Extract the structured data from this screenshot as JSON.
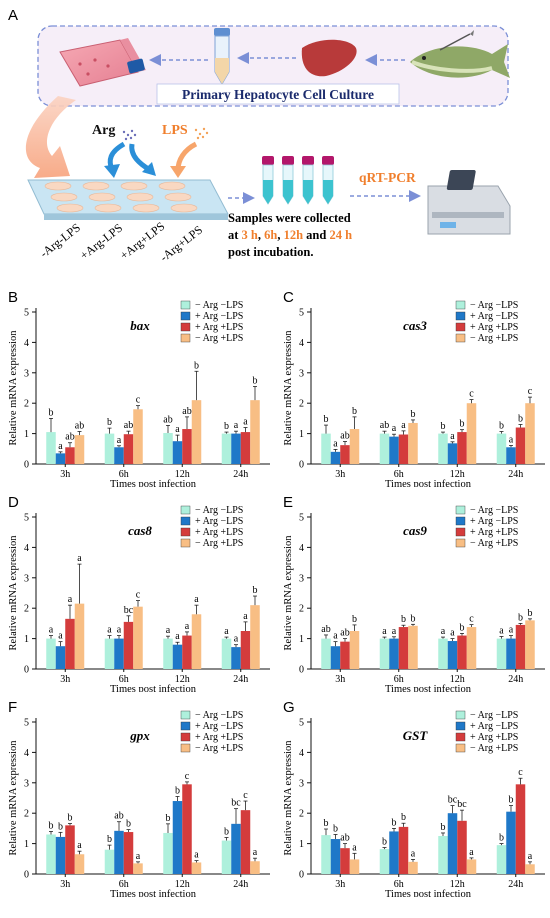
{
  "schematic": {
    "panel_letter": "A",
    "culture_title": "Primary Hepatocyte Cell Culture",
    "arg_label": "Arg",
    "lps_label": "LPS",
    "plate_labels": [
      "-Arg-LPS",
      "+Arg-LPS",
      "+Arg+LPS",
      "-Arg+LPS"
    ],
    "qrt_label": "qRT-PCR",
    "samples_line1": "Samples were collected",
    "samples_line2_parts": [
      "at ",
      "3 h",
      ", ",
      "6h",
      ", ",
      "12h",
      " and ",
      "24 h"
    ],
    "samples_line3": "post incubation.",
    "colors": {
      "orange": "#f07f2d",
      "navy": "#1a2a6c",
      "blue_arrow": "#2b8fd8",
      "dash_box": "#7b8fd6"
    }
  },
  "legend": [
    "− Arg −LPS",
    "+ Arg −LPS",
    "+ Arg +LPS",
    "− Arg +LPS"
  ],
  "series_colors": [
    "#aef0dc",
    "#1f78c8",
    "#d43c3c",
    "#f8be84"
  ],
  "chart_data": [
    {
      "type": "bar",
      "panel": "B",
      "title": "bax",
      "categories": [
        "3h",
        "6h",
        "12h",
        "24h"
      ],
      "xlabel": "Times post infection",
      "ylabel": "Relative  mRNA expression",
      "ylim": [
        0,
        5
      ],
      "yticks": [
        0,
        1,
        2,
        3,
        4,
        5
      ],
      "series": [
        {
          "name": "− Arg −LPS",
          "values": [
            1.05,
            1.0,
            1.02,
            1.0
          ],
          "errors": [
            0.45,
            0.18,
            0.25,
            0.05
          ],
          "labels": [
            "b",
            "b",
            "ab",
            "b"
          ]
        },
        {
          "name": "+ Arg −LPS",
          "values": [
            0.35,
            0.55,
            0.75,
            1.0
          ],
          "errors": [
            0.05,
            0.05,
            0.2,
            0.08
          ],
          "labels": [
            "a",
            "a",
            "a",
            "a"
          ]
        },
        {
          "name": "+ Arg +LPS",
          "values": [
            0.55,
            0.98,
            1.15,
            1.05
          ],
          "errors": [
            0.15,
            0.1,
            0.4,
            0.15
          ],
          "labels": [
            "ab",
            "ab",
            "ab",
            "a"
          ]
        },
        {
          "name": "− Arg +LPS",
          "values": [
            0.95,
            1.8,
            2.1,
            2.1
          ],
          "errors": [
            0.12,
            0.12,
            0.95,
            0.45
          ],
          "labels": [
            "ab",
            "c",
            "b",
            "b"
          ]
        }
      ]
    },
    {
      "type": "bar",
      "panel": "C",
      "title": "cas3",
      "categories": [
        "3h",
        "6h",
        "12h",
        "24h"
      ],
      "xlabel": "Times post infection",
      "ylabel": "Relative  mRNA expression",
      "ylim": [
        0,
        5
      ],
      "yticks": [
        0,
        1,
        2,
        3,
        4,
        5
      ],
      "series": [
        {
          "name": "− Arg −LPS",
          "values": [
            1.0,
            1.0,
            1.0,
            1.0
          ],
          "errors": [
            0.28,
            0.08,
            0.05,
            0.07
          ],
          "labels": [
            "b",
            "ab",
            "b",
            "b"
          ]
        },
        {
          "name": "+ Arg −LPS",
          "values": [
            0.4,
            0.9,
            0.68,
            0.55
          ],
          "errors": [
            0.08,
            0.08,
            0.05,
            0.06
          ],
          "labels": [
            "a",
            "a",
            "a",
            "a"
          ]
        },
        {
          "name": "+ Arg +LPS",
          "values": [
            0.62,
            0.97,
            1.05,
            1.2
          ],
          "errors": [
            0.12,
            0.12,
            0.08,
            0.1
          ],
          "labels": [
            "ab",
            "a",
            "b",
            "b"
          ]
        },
        {
          "name": "− Arg +LPS",
          "values": [
            1.15,
            1.35,
            2.0,
            2.0
          ],
          "errors": [
            0.4,
            0.1,
            0.12,
            0.2
          ],
          "labels": [
            "b",
            "b",
            "c",
            "c"
          ]
        }
      ]
    },
    {
      "type": "bar",
      "panel": "D",
      "title": "cas8",
      "categories": [
        "3h",
        "6h",
        "12h",
        "24h"
      ],
      "xlabel": "Times post infection",
      "ylabel": "Relative  mRNA expression",
      "ylim": [
        0,
        5
      ],
      "yticks": [
        0,
        1,
        2,
        3,
        4,
        5
      ],
      "series": [
        {
          "name": "− Arg −LPS",
          "values": [
            1.0,
            1.0,
            1.0,
            1.0
          ],
          "errors": [
            0.1,
            0.1,
            0.08,
            0.05
          ],
          "labels": [
            "a",
            "a",
            "a",
            "a"
          ]
        },
        {
          "name": "+ Arg −LPS",
          "values": [
            0.75,
            1.0,
            0.8,
            0.72
          ],
          "errors": [
            0.15,
            0.1,
            0.08,
            0.08
          ],
          "labels": [
            "a",
            "a",
            "a",
            "a"
          ]
        },
        {
          "name": "+ Arg +LPS",
          "values": [
            1.65,
            1.55,
            1.1,
            1.25
          ],
          "errors": [
            0.45,
            0.2,
            0.12,
            0.3
          ],
          "labels": [
            "a",
            "bc",
            "a",
            "a"
          ]
        },
        {
          "name": "− Arg +LPS",
          "values": [
            2.15,
            2.05,
            1.8,
            2.1
          ],
          "errors": [
            1.3,
            0.2,
            0.3,
            0.3
          ],
          "labels": [
            "a",
            "c",
            "a",
            "b"
          ]
        }
      ]
    },
    {
      "type": "bar",
      "panel": "E",
      "title": "cas9",
      "categories": [
        "3h",
        "6h",
        "12h",
        "24h"
      ],
      "xlabel": "Times post infection",
      "ylabel": "Relative  mRNA expression",
      "ylim": [
        0,
        5
      ],
      "yticks": [
        0,
        1,
        2,
        3,
        4,
        5
      ],
      "series": [
        {
          "name": "− Arg −LPS",
          "values": [
            1.0,
            1.0,
            1.0,
            1.0
          ],
          "errors": [
            0.12,
            0.05,
            0.05,
            0.07
          ],
          "labels": [
            "ab",
            "a",
            "a",
            "a"
          ]
        },
        {
          "name": "+ Arg −LPS",
          "values": [
            0.75,
            1.0,
            0.92,
            1.0
          ],
          "errors": [
            0.15,
            0.06,
            0.08,
            0.1
          ],
          "labels": [
            "a",
            "a",
            "a",
            "a"
          ]
        },
        {
          "name": "+ Arg +LPS",
          "values": [
            0.9,
            1.38,
            1.1,
            1.45
          ],
          "errors": [
            0.1,
            0.06,
            0.07,
            0.05
          ],
          "labels": [
            "ab",
            "b",
            "b",
            "b"
          ]
        },
        {
          "name": "− Arg +LPS",
          "values": [
            1.25,
            1.42,
            1.38,
            1.6
          ],
          "errors": [
            0.2,
            0.05,
            0.08,
            0.05
          ],
          "labels": [
            "b",
            "b",
            "c",
            "b"
          ]
        }
      ]
    },
    {
      "type": "bar",
      "panel": "F",
      "title": "gpx",
      "categories": [
        "3h",
        "6h",
        "12h",
        "24h"
      ],
      "xlabel": "Times post infection",
      "ylabel": "Relative  mRNA expression",
      "ylim": [
        0,
        5
      ],
      "yticks": [
        0,
        1,
        2,
        3,
        4,
        5
      ],
      "series": [
        {
          "name": "− Arg −LPS",
          "values": [
            1.3,
            0.8,
            1.35,
            1.1
          ],
          "errors": [
            0.1,
            0.15,
            0.3,
            0.1
          ],
          "labels": [
            "b",
            "b",
            "b",
            "b"
          ]
        },
        {
          "name": "+ Arg −LPS",
          "values": [
            1.22,
            1.42,
            2.4,
            1.65
          ],
          "errors": [
            0.15,
            0.3,
            0.15,
            0.5
          ],
          "labels": [
            "b",
            "ab",
            "b",
            "bc"
          ]
        },
        {
          "name": "+ Arg +LPS",
          "values": [
            1.6,
            1.38,
            2.95,
            2.1
          ],
          "errors": [
            0.06,
            0.08,
            0.08,
            0.3
          ],
          "labels": [
            "b",
            "b",
            "c",
            "c"
          ]
        },
        {
          "name": "− Arg +LPS",
          "values": [
            0.65,
            0.35,
            0.38,
            0.42
          ],
          "errors": [
            0.1,
            0.05,
            0.06,
            0.1
          ],
          "labels": [
            "a",
            "a",
            "a",
            "a"
          ]
        }
      ]
    },
    {
      "type": "bar",
      "panel": "G",
      "title": "GST",
      "categories": [
        "3h",
        "6h",
        "12h",
        "24h"
      ],
      "xlabel": "Times post infection",
      "ylabel": "Relative  mRNA expression",
      "ylim": [
        0,
        5
      ],
      "yticks": [
        0,
        1,
        2,
        3,
        4,
        5
      ],
      "series": [
        {
          "name": "− Arg −LPS",
          "values": [
            1.28,
            0.82,
            1.25,
            0.95
          ],
          "errors": [
            0.2,
            0.05,
            0.1,
            0.05
          ],
          "labels": [
            "b",
            "b",
            "b",
            "b"
          ]
        },
        {
          "name": "+ Arg −LPS",
          "values": [
            1.15,
            1.4,
            2.0,
            2.05
          ],
          "errors": [
            0.15,
            0.1,
            0.25,
            0.2
          ],
          "labels": [
            "b",
            "b",
            "bc",
            "b"
          ]
        },
        {
          "name": "+ Arg +LPS",
          "values": [
            0.85,
            1.55,
            1.75,
            2.95
          ],
          "errors": [
            0.15,
            0.12,
            0.35,
            0.2
          ],
          "labels": [
            "ab",
            "b",
            "bc",
            "c"
          ]
        },
        {
          "name": "− Arg +LPS",
          "values": [
            0.48,
            0.4,
            0.48,
            0.32
          ],
          "errors": [
            0.2,
            0.08,
            0.05,
            0.08
          ],
          "labels": [
            "a",
            "a",
            "a",
            "a"
          ]
        }
      ]
    }
  ]
}
